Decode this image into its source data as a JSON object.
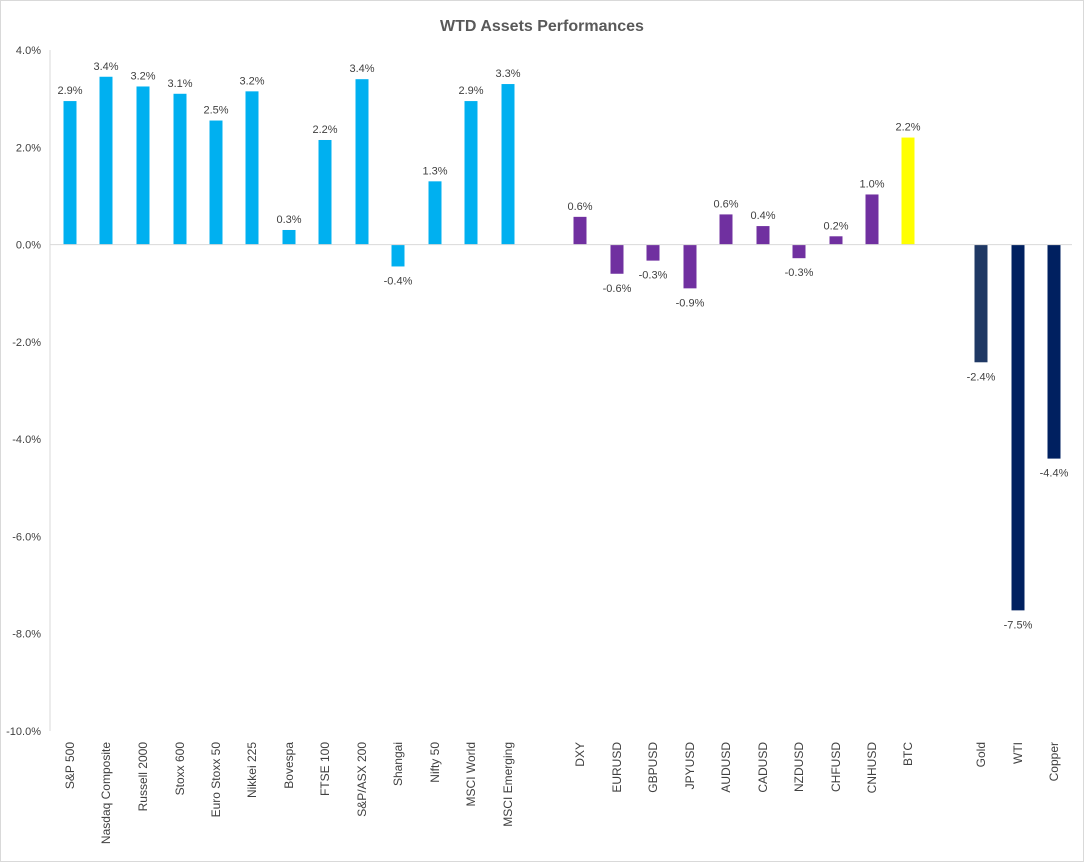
{
  "chart_data": {
    "type": "bar",
    "title": "WTD Assets Performances",
    "y_ticks": [
      "4.0%",
      "2.0%",
      "0.0%",
      "-2.0%",
      "-4.0%",
      "-6.0%",
      "-8.0%",
      "-10.0%"
    ],
    "ylim": [
      -10,
      4
    ],
    "grid": false,
    "legend": "none",
    "categories": [
      "S&P 500",
      "Nasdaq Composite",
      "Russell 2000",
      "Stoxx 600",
      "Euro Stoxx 50",
      "Nikkei 225",
      "Bovespa",
      "FTSE 100",
      "S&P/ASX 200",
      "Shangai",
      "Nifty 50",
      "MSCI World",
      "MSCI Emerging",
      "DXY",
      "EURUSD",
      "GBPUSD",
      "JPYUSD",
      "AUDUSD",
      "CADUSD",
      "NZDUSD",
      "CHFUSD",
      "CNHUSD",
      "BTC",
      "Gold",
      "WTI",
      "Copper"
    ],
    "values": [
      2.95,
      3.45,
      3.25,
      3.1,
      2.55,
      3.15,
      0.3,
      2.15,
      3.4,
      -0.45,
      1.3,
      2.95,
      3.3,
      0.57,
      -0.6,
      -0.33,
      -0.9,
      0.62,
      0.38,
      -0.28,
      0.17,
      1.03,
      2.2,
      -2.42,
      -7.52,
      -4.4
    ],
    "labels": [
      "2.9%",
      "3.4%",
      "3.2%",
      "3.1%",
      "2.5%",
      "3.2%",
      "0.3%",
      "2.2%",
      "3.4%",
      "-0.4%",
      "1.3%",
      "2.9%",
      "3.3%",
      "0.6%",
      "-0.6%",
      "-0.3%",
      "-0.9%",
      "0.6%",
      "0.4%",
      "-0.3%",
      "0.2%",
      "1.0%",
      "2.2%",
      "-2.4%",
      "-7.5%",
      "-4.4%"
    ],
    "colors": [
      "#00b0f0",
      "#00b0f0",
      "#00b0f0",
      "#00b0f0",
      "#00b0f0",
      "#00b0f0",
      "#00b0f0",
      "#00b0f0",
      "#00b0f0",
      "#00b0f0",
      "#00b0f0",
      "#00b0f0",
      "#00b0f0",
      "#7030a0",
      "#7030a0",
      "#7030a0",
      "#7030a0",
      "#7030a0",
      "#7030a0",
      "#7030a0",
      "#7030a0",
      "#7030a0",
      "#ffff00",
      "#1f3864",
      "#002060",
      "#002060"
    ]
  }
}
